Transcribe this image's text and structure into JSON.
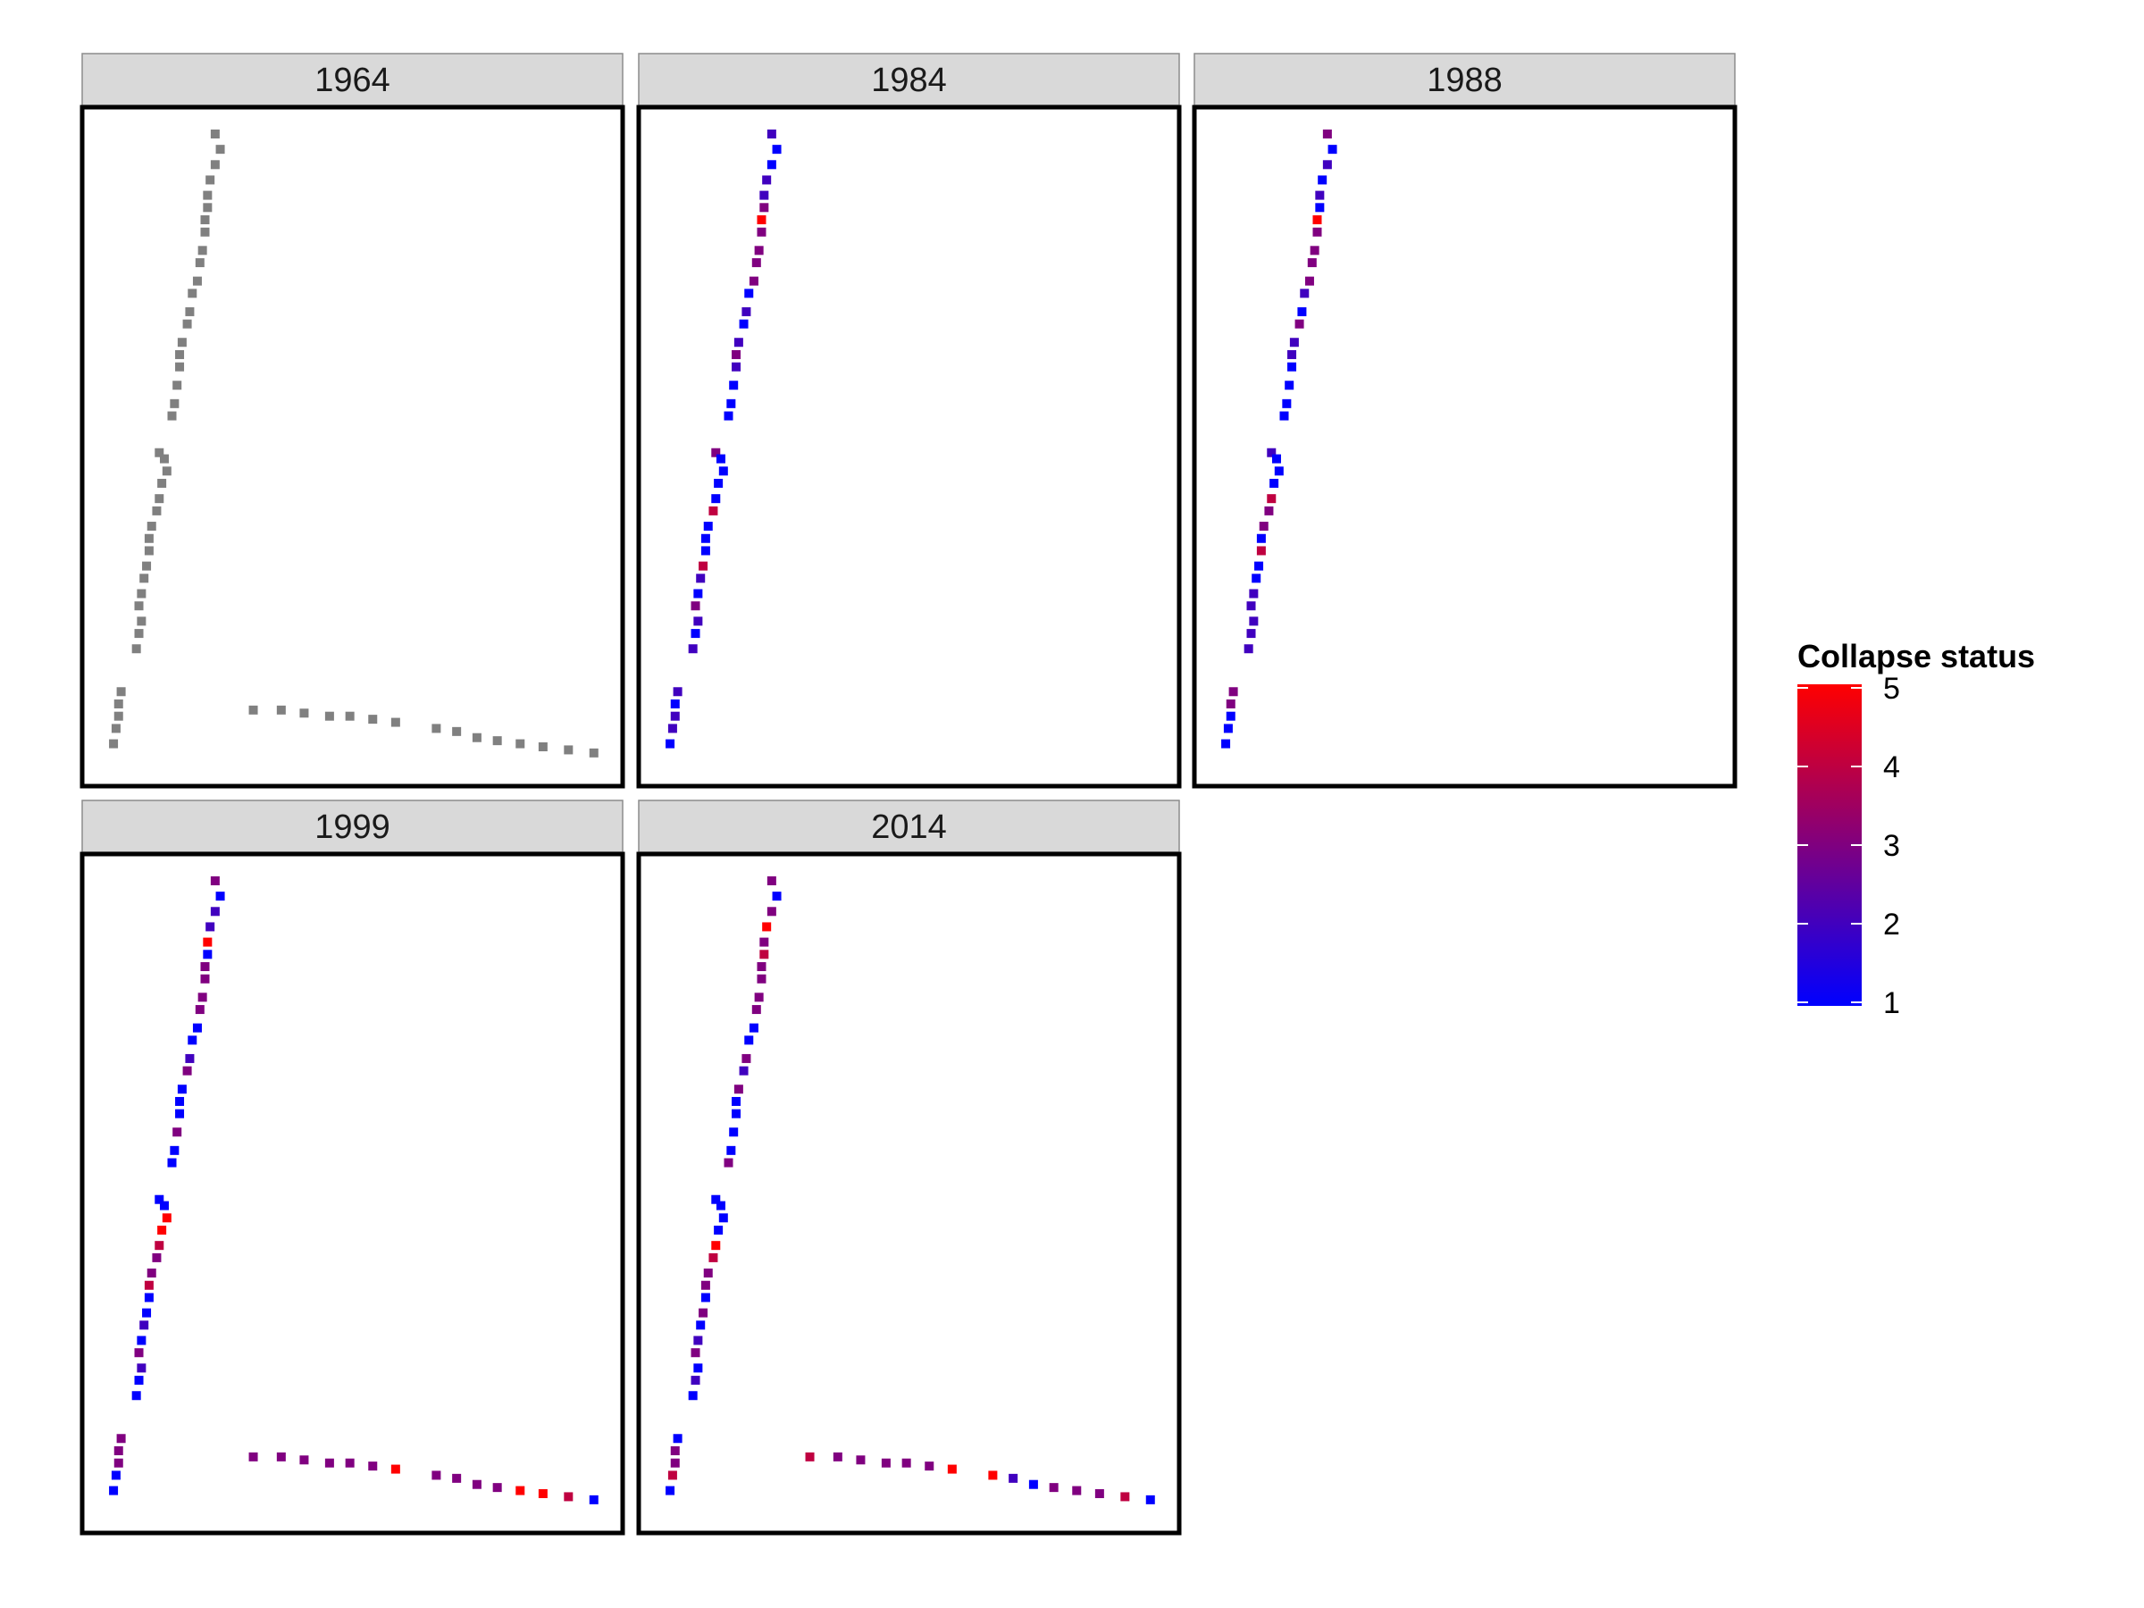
{
  "chart_data": {
    "type": "scatter",
    "x_range": [
      0,
      100
    ],
    "y_range": [
      0,
      100
    ],
    "axes_visible": false,
    "grid": false,
    "missing_color": "#808080",
    "legend": {
      "title": "Collapse status",
      "placement": "right",
      "type": "colorbar",
      "low_color": "#0000ff",
      "high_color": "#ff0000",
      "ticks": [
        1,
        2,
        3,
        4,
        5
      ],
      "tick_labels": [
        "1",
        "2",
        "3",
        "4",
        "5"
      ],
      "range": [
        1,
        5
      ]
    },
    "trunk_points": [
      [
        23,
        100
      ],
      [
        24,
        97.5
      ],
      [
        23,
        95
      ],
      [
        22,
        92.5
      ],
      [
        21.5,
        90
      ],
      [
        21.5,
        88
      ],
      [
        21,
        86
      ],
      [
        21,
        84
      ],
      [
        20.5,
        81
      ],
      [
        20,
        79
      ],
      [
        19.5,
        76
      ],
      [
        18.5,
        74
      ],
      [
        18,
        71
      ],
      [
        17.5,
        69
      ],
      [
        16.5,
        66
      ],
      [
        16,
        64
      ],
      [
        16,
        62
      ],
      [
        15.5,
        59
      ],
      [
        15,
        56
      ],
      [
        14.5,
        54
      ],
      [
        12,
        48
      ],
      [
        13,
        47
      ],
      [
        13.5,
        45
      ],
      [
        12.5,
        43
      ],
      [
        12,
        40.5
      ],
      [
        11.5,
        38.5
      ],
      [
        10.5,
        36
      ],
      [
        10,
        34
      ],
      [
        10,
        32
      ],
      [
        9.5,
        29.5
      ],
      [
        9,
        27.5
      ],
      [
        8.5,
        25
      ],
      [
        8,
        23
      ],
      [
        8.5,
        20.5
      ],
      [
        8,
        18.5
      ],
      [
        7.5,
        16
      ],
      [
        4.5,
        9
      ],
      [
        4,
        7
      ],
      [
        4,
        5
      ],
      [
        3.5,
        3
      ],
      [
        3,
        0.5
      ]
    ],
    "branch_points": [
      [
        30.5,
        6
      ],
      [
        36,
        6
      ],
      [
        40.5,
        5.5
      ],
      [
        45.5,
        5
      ],
      [
        49.5,
        5
      ],
      [
        54,
        4.5
      ],
      [
        58.5,
        4
      ],
      [
        66.5,
        3
      ],
      [
        70.5,
        2.5
      ],
      [
        74.5,
        1.5
      ],
      [
        78.5,
        1
      ],
      [
        83,
        0.5
      ],
      [
        87.5,
        0
      ],
      [
        92.5,
        -0.5
      ],
      [
        97.5,
        -1
      ]
    ],
    "panels": [
      {
        "year": "1964",
        "trunk_values": [],
        "branch_values": []
      },
      {
        "year": "1984",
        "trunk_values": [
          2,
          1,
          1,
          2,
          2,
          3,
          5,
          3,
          3,
          3,
          3,
          1,
          2,
          1,
          2,
          3,
          2,
          1,
          1,
          1,
          3,
          1,
          1,
          1,
          1,
          4,
          1,
          1,
          1,
          4,
          2,
          1,
          3,
          2,
          1,
          2,
          2,
          1,
          2,
          2,
          1
        ],
        "branch_values": []
      },
      {
        "year": "1988",
        "trunk_values": [
          3,
          1,
          2,
          1,
          2,
          1,
          5,
          3,
          3,
          3,
          3,
          2,
          1,
          3,
          2,
          2,
          1,
          1,
          1,
          1,
          2,
          1,
          1,
          1,
          4,
          3,
          3,
          1,
          4,
          1,
          1,
          2,
          2,
          2,
          2,
          2,
          3,
          3,
          1,
          1,
          1
        ],
        "branch_values": []
      },
      {
        "year": "1999",
        "trunk_values": [
          3,
          1,
          2,
          2,
          5,
          1,
          3,
          3,
          3,
          3,
          1,
          1,
          2,
          3,
          1,
          1,
          1,
          3,
          1,
          1,
          1,
          1,
          5,
          5,
          4,
          3,
          3,
          4,
          1,
          1,
          2,
          1,
          3,
          2,
          1,
          1,
          3,
          3,
          3,
          1,
          1
        ],
        "branch_values": [
          3,
          3,
          3,
          3,
          3,
          3,
          5,
          3,
          3,
          3,
          3,
          5,
          5,
          4,
          1
        ]
      },
      {
        "year": "2014",
        "trunk_values": [
          3,
          1,
          3,
          5,
          3,
          4,
          3,
          3,
          3,
          3,
          1,
          1,
          3,
          2,
          3,
          1,
          1,
          1,
          1,
          3,
          1,
          1,
          1,
          1,
          5,
          4,
          3,
          3,
          1,
          3,
          1,
          2,
          3,
          1,
          2,
          1,
          1,
          3,
          3,
          4,
          1
        ],
        "branch_values": [
          4,
          3,
          3,
          3,
          3,
          3,
          5,
          5,
          2,
          1,
          3,
          3,
          3,
          4,
          1
        ]
      }
    ]
  }
}
